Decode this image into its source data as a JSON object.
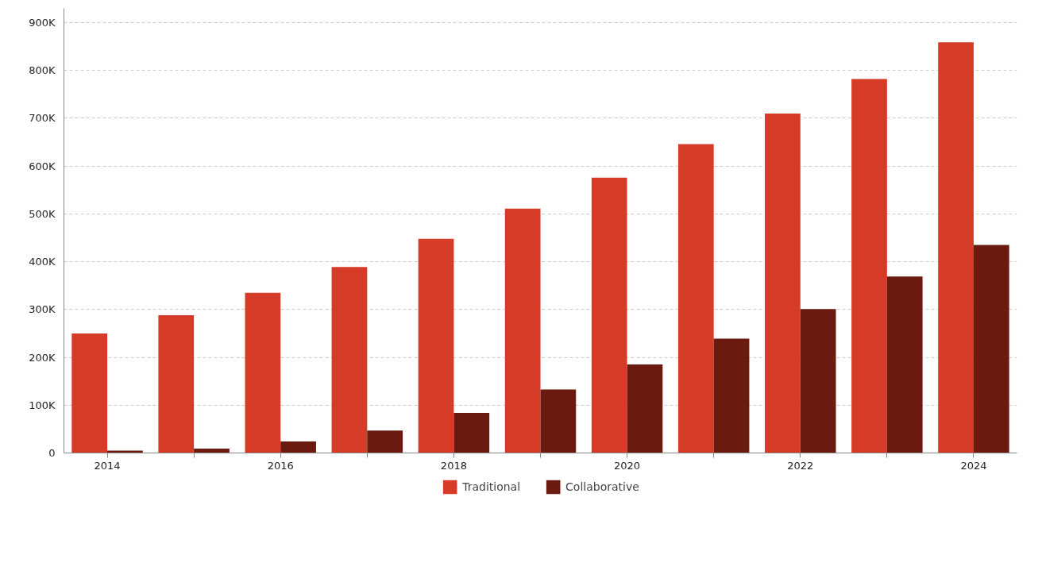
{
  "chart_data": {
    "type": "bar",
    "x": [
      2014,
      2015,
      2016,
      2017,
      2018,
      2019,
      2020,
      2021,
      2022,
      2023,
      2024
    ],
    "series": [
      {
        "name": "Traditional",
        "color": "#d63b28",
        "values": [
          250000,
          288000,
          335000,
          389000,
          448000,
          511000,
          576000,
          646000,
          710000,
          782000,
          859000
        ]
      },
      {
        "name": "Collaborative",
        "color": "#6b1a10",
        "values": [
          5000,
          9000,
          24000,
          47000,
          84000,
          133000,
          185000,
          239000,
          301000,
          369000,
          435000
        ]
      }
    ],
    "xlim": [
      2013.5,
      2024.5
    ],
    "xticks": [
      2014,
      {
        "value": 2015,
        "label": null
      },
      2016,
      {
        "value": 2017,
        "label": null
      },
      2018,
      {
        "value": 2019,
        "label": null
      },
      2020,
      {
        "value": 2021,
        "label": null
      },
      2022,
      {
        "value": 2023,
        "label": null
      },
      2024
    ],
    "ylim": [
      0,
      930000
    ],
    "yticks": [
      {
        "value": 0,
        "label": "0"
      },
      {
        "value": 100000,
        "label": "100K"
      },
      {
        "value": 200000,
        "label": "200K"
      },
      {
        "value": 300000,
        "label": "300K"
      },
      {
        "value": 400000,
        "label": "400K"
      },
      {
        "value": 500000,
        "label": "500K"
      },
      {
        "value": 600000,
        "label": "600K"
      },
      {
        "value": 700000,
        "label": "700K"
      },
      {
        "value": 800000,
        "label": "800K"
      },
      {
        "value": 900000,
        "label": "900K"
      }
    ],
    "grid": "y",
    "legend": "bottom"
  }
}
